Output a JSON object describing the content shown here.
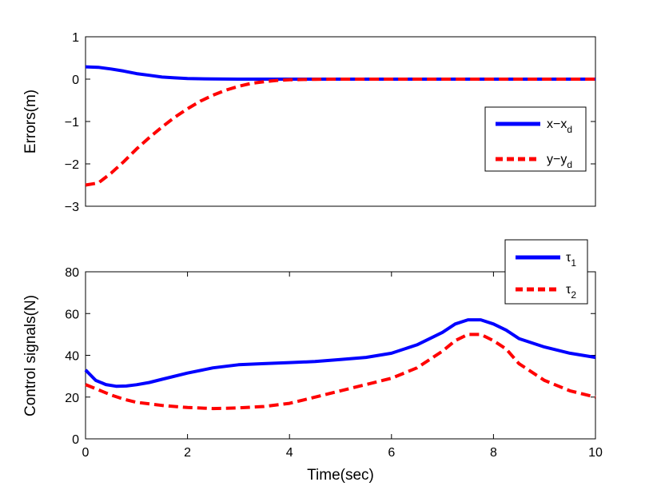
{
  "chart_data": [
    {
      "type": "line",
      "title": "",
      "xlabel": "",
      "ylabel": "Errors(m)",
      "xlim": [
        0,
        10
      ],
      "ylim": [
        -3,
        1
      ],
      "xticks": [],
      "yticks": [
        1,
        0,
        -1,
        -2,
        -3
      ],
      "ytick_labels": [
        "1",
        "0",
        "−1",
        "−2",
        "−3"
      ],
      "legend": {
        "position": "right",
        "entries": [
          {
            "name": "x−x",
            "subscript": "d"
          },
          {
            "name": "y−y",
            "subscript": "d"
          }
        ]
      },
      "series": [
        {
          "name": "x-x_d",
          "color": "#0000ff",
          "style": "solid",
          "x": [
            0,
            0.25,
            0.5,
            0.75,
            1.0,
            1.25,
            1.5,
            1.75,
            2.0,
            2.5,
            3.0,
            4.0,
            5.0,
            6.0,
            7.0,
            8.0,
            9.0,
            10.0
          ],
          "y": [
            0.29,
            0.28,
            0.24,
            0.19,
            0.13,
            0.09,
            0.05,
            0.03,
            0.015,
            0.004,
            0.0,
            0.0,
            0.0,
            0.0,
            0.0,
            0.0,
            0.0,
            0.0
          ]
        },
        {
          "name": "y-y_d",
          "color": "#ff0000",
          "style": "dashed",
          "x": [
            0,
            0.25,
            0.5,
            0.75,
            1.0,
            1.25,
            1.5,
            1.75,
            2.0,
            2.25,
            2.5,
            2.75,
            3.0,
            3.25,
            3.5,
            3.75,
            4.0,
            4.5,
            5.0,
            6.0,
            7.0,
            8.0,
            9.0,
            10.0
          ],
          "y": [
            -2.5,
            -2.45,
            -2.22,
            -1.95,
            -1.65,
            -1.38,
            -1.13,
            -0.9,
            -0.7,
            -0.52,
            -0.38,
            -0.26,
            -0.17,
            -0.1,
            -0.06,
            -0.03,
            -0.015,
            -0.004,
            0.0,
            0.0,
            0.0,
            0.0,
            0.0,
            0.0
          ]
        }
      ]
    },
    {
      "type": "line",
      "title": "",
      "xlabel": "Time(sec)",
      "ylabel": "Control signals(N)",
      "xlim": [
        0,
        10
      ],
      "ylim": [
        0,
        80
      ],
      "xticks": [
        0,
        2,
        4,
        6,
        8,
        10
      ],
      "xtick_labels": [
        "0",
        "2",
        "4",
        "6",
        "8",
        "10"
      ],
      "yticks": [
        80,
        60,
        40,
        20,
        0
      ],
      "ytick_labels": [
        "80",
        "60",
        "40",
        "20",
        "0"
      ],
      "legend": {
        "position": "top-right",
        "entries": [
          {
            "name": "τ",
            "subscript": "1"
          },
          {
            "name": "τ",
            "subscript": "2"
          }
        ]
      },
      "series": [
        {
          "name": "tau_1",
          "color": "#0000ff",
          "style": "solid",
          "x": [
            0,
            0.2,
            0.4,
            0.6,
            0.8,
            1.0,
            1.25,
            1.5,
            2.0,
            2.5,
            3.0,
            3.5,
            4.0,
            4.5,
            5.0,
            5.5,
            6.0,
            6.5,
            7.0,
            7.25,
            7.5,
            7.75,
            8.0,
            8.25,
            8.5,
            9.0,
            9.5,
            10.0
          ],
          "y": [
            33,
            28,
            26,
            25.2,
            25.3,
            25.9,
            27,
            28.5,
            31.5,
            34,
            35.5,
            36,
            36.5,
            37,
            38,
            39,
            41,
            45,
            51,
            55,
            57,
            57,
            55,
            52,
            48,
            44,
            41,
            39
          ]
        },
        {
          "name": "tau_2",
          "color": "#ff0000",
          "style": "dashed",
          "x": [
            0,
            0.25,
            0.5,
            0.75,
            1.0,
            1.5,
            2.0,
            2.5,
            3.0,
            3.5,
            4.0,
            4.5,
            5.0,
            5.5,
            6.0,
            6.5,
            7.0,
            7.25,
            7.5,
            7.75,
            8.0,
            8.25,
            8.5,
            9.0,
            9.5,
            10.0
          ],
          "y": [
            26,
            23.5,
            21,
            19,
            17.5,
            16,
            15,
            14.5,
            14.8,
            15.5,
            17,
            20,
            23,
            26,
            29,
            34,
            42,
            47,
            50,
            50,
            47,
            43,
            36,
            28,
            23,
            20
          ]
        }
      ]
    }
  ]
}
